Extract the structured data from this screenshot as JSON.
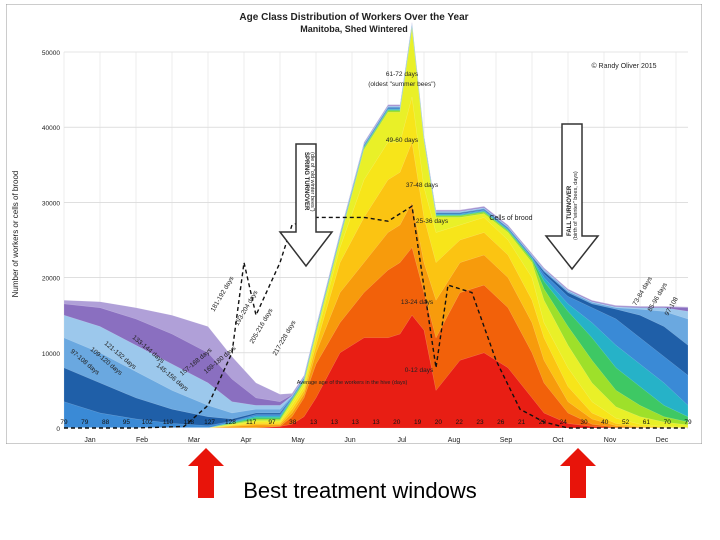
{
  "chart_data": {
    "type": "area",
    "title": "Age Class Distribution of Workers Over the Year",
    "subtitle": "Manitoba, Shed Wintered",
    "copyright": "© Randy Oliver 2015",
    "ylabel": "Number of workers or cells of brood",
    "ylim": [
      0,
      50000
    ],
    "yticks": [
      "0",
      "10000",
      "20000",
      "30000",
      "40000",
      "50000"
    ],
    "months": [
      "Jan",
      "Feb",
      "Mar",
      "Apr",
      "May",
      "Jun",
      "Jul",
      "Aug",
      "Sep",
      "Oct",
      "Nov",
      "Dec"
    ],
    "x_ticks_week": [
      0,
      3,
      6,
      9,
      12,
      15,
      18,
      21,
      24,
      27,
      30,
      33,
      36,
      39,
      42,
      45,
      48,
      51
    ],
    "bottom_numbers": [
      "79",
      "79",
      "88",
      "95",
      "102",
      "110",
      "118",
      "127",
      "128",
      "117",
      "97",
      "38",
      "13",
      "13",
      "13",
      "13",
      "20",
      "19",
      "20",
      "22",
      "23",
      "26",
      "21",
      "22",
      "24",
      "30",
      "40",
      "52",
      "61",
      "70",
      "79"
    ],
    "bottom_numbers_caption": "Average age of the workers in the hive (days)",
    "x": [
      0,
      3,
      6,
      9,
      12,
      14,
      16,
      18,
      19,
      20,
      21,
      23,
      25,
      27,
      28,
      29,
      30,
      31,
      33,
      35,
      37,
      39,
      40,
      42,
      44,
      46,
      48,
      50,
      52
    ],
    "series": [
      {
        "name": "0-12 days",
        "color": "#e81e14",
        "values": [
          0,
          0,
          0,
          0,
          0,
          0,
          0,
          200,
          500,
          1500,
          4000,
          10000,
          12000,
          12000,
          12500,
          15000,
          13000,
          5000,
          9000,
          10000,
          8000,
          4000,
          2000,
          600,
          200,
          0,
          0,
          0,
          0
        ]
      },
      {
        "name": "13-24 days",
        "color": "#f2610a",
        "values": [
          0,
          0,
          0,
          0,
          0,
          0,
          0,
          200,
          1500,
          4000,
          8500,
          14000,
          18000,
          21000,
          22000,
          24000,
          18000,
          12000,
          18000,
          19000,
          16000,
          10000,
          6000,
          2000,
          500,
          100,
          0,
          0,
          0
        ]
      },
      {
        "name": "25-36 days",
        "color": "#f79b0c",
        "values": [
          0,
          0,
          0,
          0,
          0,
          200,
          400,
          400,
          2000,
          4500,
          10000,
          18000,
          22000,
          26000,
          27000,
          30000,
          22000,
          17000,
          22000,
          23000,
          20000,
          14000,
          9000,
          3500,
          1200,
          300,
          100,
          0,
          0
        ]
      },
      {
        "name": "37-48 days",
        "color": "#fbc412",
        "values": [
          0,
          0,
          0,
          0,
          0,
          300,
          600,
          600,
          2500,
          5000,
          11000,
          22000,
          28000,
          33000,
          34000,
          38000,
          28000,
          22000,
          25000,
          26000,
          23000,
          17000,
          12000,
          5500,
          2000,
          600,
          200,
          100,
          0
        ]
      },
      {
        "name": "49-60 days",
        "color": "#f7e51a",
        "values": [
          0,
          0,
          0,
          0,
          0,
          400,
          800,
          800,
          3000,
          5500,
          12000,
          24000,
          33000,
          38000,
          38000,
          44000,
          32000,
          26000,
          27000,
          28000,
          25000,
          20000,
          14000,
          8000,
          3500,
          1300,
          500,
          200,
          100
        ]
      },
      {
        "name": "61-72 days (oldest \"summer bees\")",
        "color": "#e9f028",
        "values": [
          0,
          0,
          0,
          0,
          0,
          500,
          1000,
          1000,
          3500,
          6000,
          12500,
          25000,
          37000,
          42000,
          42000,
          53000,
          38000,
          28000,
          28000,
          28500,
          26000,
          22000,
          17000,
          11000,
          6000,
          2800,
          1500,
          800,
          400
        ]
      },
      {
        "name": "73-84 days",
        "color": "#9ee02a",
        "values": [
          0,
          0,
          0,
          0,
          0,
          600,
          1200,
          1200,
          3700,
          6200,
          12700,
          25200,
          37200,
          42200,
          42200,
          53200,
          38200,
          28200,
          28200,
          28700,
          26200,
          22300,
          18500,
          13500,
          9000,
          5000,
          3000,
          1500,
          800
        ]
      },
      {
        "name": "85-96 days",
        "color": "#3ec864",
        "values": [
          0,
          0,
          0,
          0,
          0,
          700,
          1400,
          1400,
          3800,
          6300,
          12800,
          25300,
          37300,
          42300,
          42300,
          53300,
          38300,
          28300,
          28300,
          28800,
          26300,
          22500,
          19500,
          15500,
          12000,
          8000,
          5500,
          3000,
          1500
        ]
      },
      {
        "name": "97-108 days",
        "color": "#26b2c8",
        "values": [
          0,
          0,
          0,
          0,
          0,
          800,
          1600,
          1600,
          3900,
          6400,
          12900,
          25400,
          37400,
          42400,
          42400,
          53400,
          38400,
          28400,
          28400,
          28900,
          26400,
          22600,
          20000,
          16500,
          14000,
          11000,
          8500,
          6000,
          3000
        ]
      },
      {
        "name": "109-120 days",
        "color": "#3a8ad6",
        "values": [
          3500,
          2000,
          1200,
          600,
          300,
          900,
          1800,
          1800,
          4000,
          6500,
          13000,
          25500,
          37500,
          42500,
          42500,
          53500,
          38500,
          28500,
          28500,
          29000,
          26500,
          22700,
          20500,
          17500,
          16000,
          14500,
          12000,
          9500,
          7000
        ]
      },
      {
        "name": "121-132 days",
        "color": "#1f5fa8",
        "values": [
          8000,
          6000,
          4000,
          2500,
          1500,
          1200,
          2000,
          2000,
          4100,
          6600,
          13100,
          25600,
          37600,
          42600,
          42600,
          53600,
          38600,
          28600,
          28600,
          29100,
          26600,
          22800,
          20800,
          18000,
          16500,
          15800,
          15000,
          13500,
          11000
        ]
      },
      {
        "name": "133-144 days",
        "color": "#6aa8e0",
        "values": [
          12000,
          10000,
          7500,
          5000,
          3000,
          2000,
          2500,
          2500,
          4200,
          6700,
          13200,
          25700,
          37700,
          42700,
          42700,
          53700,
          38700,
          28700,
          28700,
          29200,
          26700,
          22900,
          21000,
          18200,
          16700,
          16000,
          15800,
          15500,
          14500
        ]
      },
      {
        "name": "145-156 days",
        "color": "#9cc8ec",
        "values": [
          15000,
          13500,
          11000,
          8500,
          6000,
          3500,
          3000,
          3000,
          4300,
          6800,
          13300,
          25800,
          37800,
          42800,
          42800,
          53800,
          38800,
          28800,
          28800,
          29300,
          26800,
          23000,
          21100,
          18300,
          16800,
          16100,
          16000,
          16000,
          15500
        ]
      },
      {
        "name": "157-168 days",
        "color": "#8a6fc0",
        "values": [
          16500,
          16000,
          14500,
          12500,
          10000,
          6500,
          4000,
          3500,
          4400,
          6900,
          13400,
          25900,
          37900,
          42900,
          42900,
          53900,
          38900,
          28900,
          28900,
          29400,
          26900,
          23100,
          21200,
          18400,
          16900,
          16200,
          16100,
          16100,
          16000
        ]
      },
      {
        "name": "169-180 days",
        "color": "#b0a0d8",
        "values": [
          17000,
          16800,
          16000,
          15000,
          13500,
          9500,
          6000,
          4500,
          4600,
          7000,
          13500,
          26000,
          38000,
          43000,
          43000,
          54000,
          39000,
          29000,
          29000,
          29500,
          27000,
          23200,
          21300,
          18500,
          17000,
          16300,
          16200,
          16200,
          16100
        ]
      }
    ],
    "brood": {
      "name": "Cells of brood",
      "x": [
        0,
        6,
        10,
        12,
        14,
        15,
        16,
        18,
        19,
        21,
        23,
        25,
        27,
        29,
        31,
        32,
        34,
        36,
        38,
        40,
        42,
        44,
        46,
        48,
        52
      ],
      "values": [
        0,
        0,
        200,
        3000,
        10000,
        22000,
        15000,
        22000,
        27000,
        28000,
        28000,
        28000,
        27500,
        29500,
        8000,
        19000,
        18000,
        9000,
        2500,
        800,
        0,
        0,
        0,
        0,
        0
      ]
    },
    "annotations": [
      {
        "text": "SPRING TURNOVER",
        "text2": "(die of \"old winter bees\")"
      },
      {
        "text": "FALL TURNOVER",
        "text2": "(birth of \"winter\" bees, days)"
      },
      {
        "text": "61-72 days",
        "text2": "(oldest \"summer bees\")"
      },
      {
        "text": "49-60 days"
      },
      {
        "text": "37-48 days"
      },
      {
        "text": "25-36 days"
      },
      {
        "text": "Cells of brood"
      },
      {
        "text": "13-24 days"
      },
      {
        "text": "0-12 days"
      },
      {
        "text": "73-84 days"
      },
      {
        "text": "85-96 days"
      },
      {
        "text": "97-108"
      },
      {
        "text": "181-192 days"
      },
      {
        "text": "193-204 days"
      },
      {
        "text": "205-216 days"
      },
      {
        "text": "217-228 days"
      },
      {
        "text": "169-180 days"
      },
      {
        "text": "157-168 days"
      },
      {
        "text": "145-156 days"
      },
      {
        "text": "133-144 days"
      },
      {
        "text": "121-132 days"
      },
      {
        "text": "109-120 days"
      },
      {
        "text": "97-108 days"
      }
    ]
  },
  "caption": "Best treatment windows",
  "arrow_color": "#e8140a"
}
